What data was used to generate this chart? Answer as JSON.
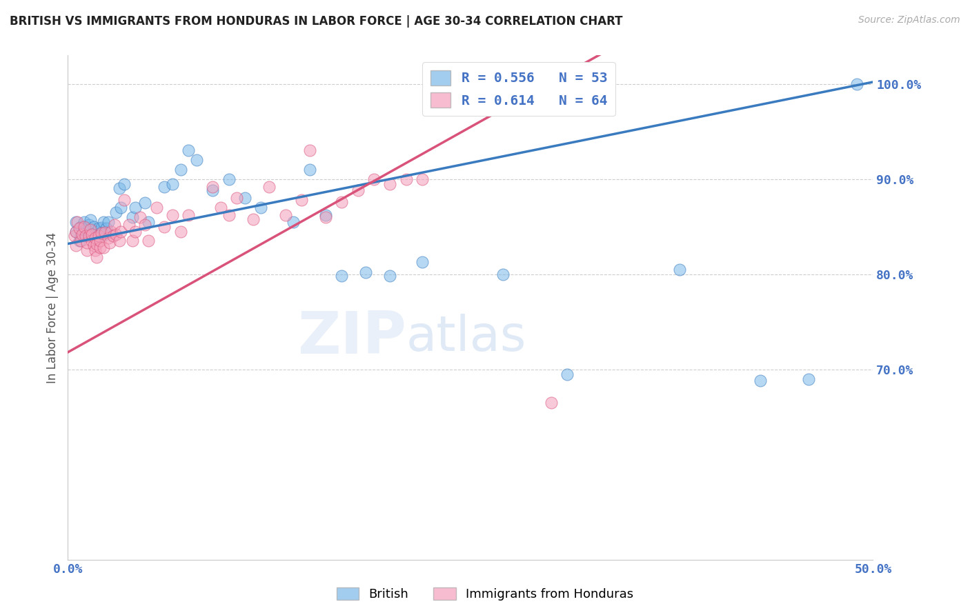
{
  "title": "BRITISH VS IMMIGRANTS FROM HONDURAS IN LABOR FORCE | AGE 30-34 CORRELATION CHART",
  "source": "Source: ZipAtlas.com",
  "ylabel": "In Labor Force | Age 30-34",
  "xmin": 0.0,
  "xmax": 0.5,
  "ymin": 0.5,
  "ymax": 1.03,
  "yticks": [
    1.0,
    0.9,
    0.8,
    0.7
  ],
  "ytick_labels": [
    "100.0%",
    "90.0%",
    "80.0%",
    "70.0%"
  ],
  "blue_R": 0.556,
  "blue_N": 53,
  "pink_R": 0.614,
  "pink_N": 64,
  "blue_color": "#7bb8e8",
  "pink_color": "#f4a0bb",
  "blue_line_color": "#3a7bbf",
  "pink_line_color": "#d9527a",
  "legend_blue_label": "British",
  "legend_pink_label": "Immigrants from Honduras",
  "watermark_zip": "ZIP",
  "watermark_atlas": "atlas",
  "title_color": "#222222",
  "axis_color": "#4472c4",
  "grid_color": "#c8c8c8",
  "blue_line_x0": 0.0,
  "blue_line_y0": 0.832,
  "blue_line_x1": 0.5,
  "blue_line_y1": 1.002,
  "pink_line_x0": 0.0,
  "pink_line_y0": 0.718,
  "pink_line_x1": 0.3,
  "pink_line_y1": 1.002,
  "blue_scatter_x": [
    0.005,
    0.005,
    0.007,
    0.008,
    0.008,
    0.009,
    0.01,
    0.01,
    0.011,
    0.012,
    0.013,
    0.014,
    0.015,
    0.016,
    0.017,
    0.018,
    0.019,
    0.02,
    0.021,
    0.022,
    0.023,
    0.024,
    0.025,
    0.03,
    0.032,
    0.033,
    0.035,
    0.04,
    0.042,
    0.048,
    0.05,
    0.06,
    0.065,
    0.07,
    0.075,
    0.08,
    0.09,
    0.1,
    0.11,
    0.12,
    0.14,
    0.15,
    0.16,
    0.17,
    0.185,
    0.2,
    0.22,
    0.27,
    0.31,
    0.38,
    0.43,
    0.46,
    0.49
  ],
  "blue_scatter_y": [
    0.845,
    0.855,
    0.835,
    0.84,
    0.85,
    0.843,
    0.847,
    0.855,
    0.848,
    0.84,
    0.852,
    0.857,
    0.842,
    0.85,
    0.838,
    0.845,
    0.848,
    0.843,
    0.849,
    0.855,
    0.842,
    0.848,
    0.855,
    0.865,
    0.89,
    0.87,
    0.895,
    0.86,
    0.87,
    0.875,
    0.855,
    0.892,
    0.895,
    0.91,
    0.93,
    0.92,
    0.888,
    0.9,
    0.88,
    0.87,
    0.855,
    0.91,
    0.862,
    0.798,
    0.802,
    0.798,
    0.813,
    0.8,
    0.695,
    0.805,
    0.688,
    0.69,
    1.0
  ],
  "pink_scatter_x": [
    0.004,
    0.005,
    0.005,
    0.006,
    0.007,
    0.008,
    0.009,
    0.01,
    0.011,
    0.012,
    0.012,
    0.013,
    0.014,
    0.015,
    0.015,
    0.016,
    0.017,
    0.017,
    0.018,
    0.018,
    0.019,
    0.02,
    0.02,
    0.021,
    0.022,
    0.023,
    0.025,
    0.026,
    0.027,
    0.028,
    0.029,
    0.03,
    0.032,
    0.033,
    0.035,
    0.038,
    0.04,
    0.042,
    0.045,
    0.048,
    0.05,
    0.055,
    0.06,
    0.065,
    0.07,
    0.075,
    0.09,
    0.095,
    0.1,
    0.105,
    0.115,
    0.125,
    0.135,
    0.145,
    0.15,
    0.16,
    0.17,
    0.18,
    0.19,
    0.2,
    0.21,
    0.22,
    0.25,
    0.3
  ],
  "pink_scatter_y": [
    0.84,
    0.83,
    0.845,
    0.855,
    0.848,
    0.835,
    0.842,
    0.85,
    0.84,
    0.825,
    0.833,
    0.84,
    0.847,
    0.835,
    0.842,
    0.83,
    0.838,
    0.825,
    0.818,
    0.832,
    0.84,
    0.828,
    0.835,
    0.843,
    0.828,
    0.844,
    0.838,
    0.833,
    0.845,
    0.84,
    0.852,
    0.842,
    0.835,
    0.845,
    0.878,
    0.852,
    0.835,
    0.845,
    0.86,
    0.852,
    0.835,
    0.87,
    0.85,
    0.862,
    0.845,
    0.862,
    0.892,
    0.87,
    0.862,
    0.88,
    0.858,
    0.892,
    0.862,
    0.878,
    0.93,
    0.86,
    0.876,
    0.888,
    0.9,
    0.895,
    0.9,
    0.9,
    1.0,
    0.665
  ]
}
